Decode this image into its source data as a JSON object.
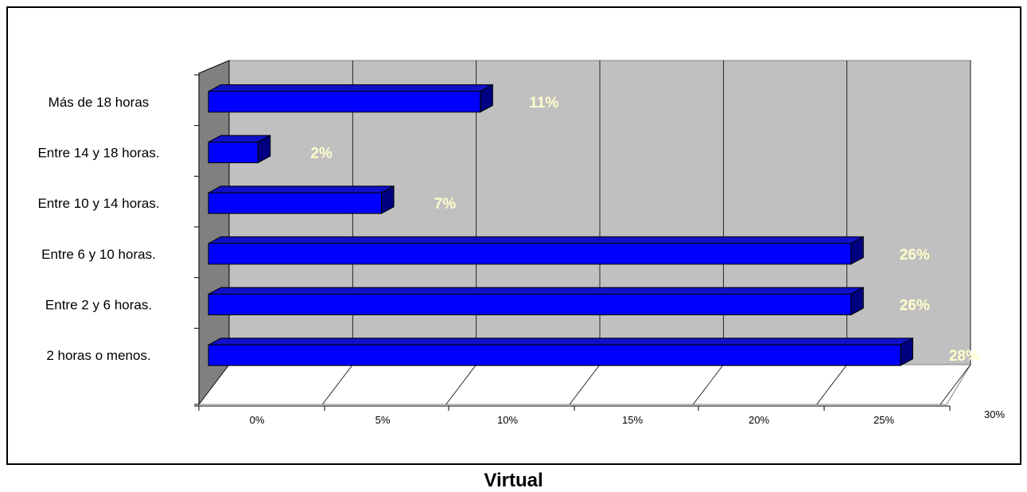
{
  "chart_data": {
    "type": "bar",
    "orientation": "horizontal",
    "style": "3d",
    "categories": [
      "Más de 18 horas",
      "Entre 14 y 18 horas.",
      "Entre 10 y 14 horas.",
      "Entre 6 y 10 horas.",
      "Entre 2 y 6 horas.",
      "2 horas o menos."
    ],
    "values": [
      11,
      2,
      7,
      26,
      26,
      28
    ],
    "data_labels": [
      "11%",
      "2%",
      "7%",
      "26%",
      "26%",
      "28%"
    ],
    "x_ticks": [
      "0%",
      "5%",
      "10%",
      "15%",
      "20%",
      "25%",
      "30%"
    ],
    "xlim": [
      0,
      30
    ],
    "grid": true,
    "title": "Virtual",
    "colors": {
      "bar_front": "#0000ff",
      "bar_top": "#1010c8",
      "bar_side": "#000080",
      "wall_back": "#c0c0c0",
      "wall_left": "#808080",
      "floor": "#ffffff",
      "data_label": "#ffffcc"
    }
  }
}
